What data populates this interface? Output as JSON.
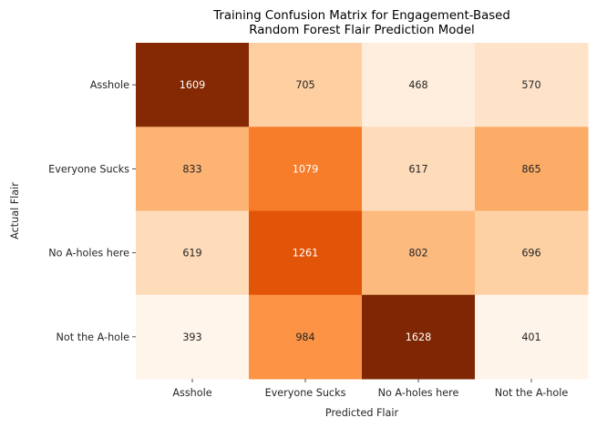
{
  "chart_data": {
    "type": "heatmap",
    "title": [
      "Training Confusion Matrix for Engagement-Based",
      "Random Forest Flair Prediction Model"
    ],
    "xlabel": "Predicted Flair",
    "ylabel": "Actual Flair",
    "x_categories": [
      "Asshole",
      "Everyone Sucks",
      "No A-holes here",
      "Not the A-hole"
    ],
    "y_categories": [
      "Asshole",
      "Everyone Sucks",
      "No A-holes here",
      "Not the A-hole"
    ],
    "values": [
      [
        1609,
        705,
        468,
        570
      ],
      [
        833,
        1079,
        617,
        865
      ],
      [
        619,
        1261,
        802,
        696
      ],
      [
        393,
        984,
        1628,
        401
      ]
    ],
    "colormap": "Oranges",
    "vmin": 393,
    "vmax": 1628,
    "annotate": true,
    "colorbar": false,
    "grid": false
  }
}
